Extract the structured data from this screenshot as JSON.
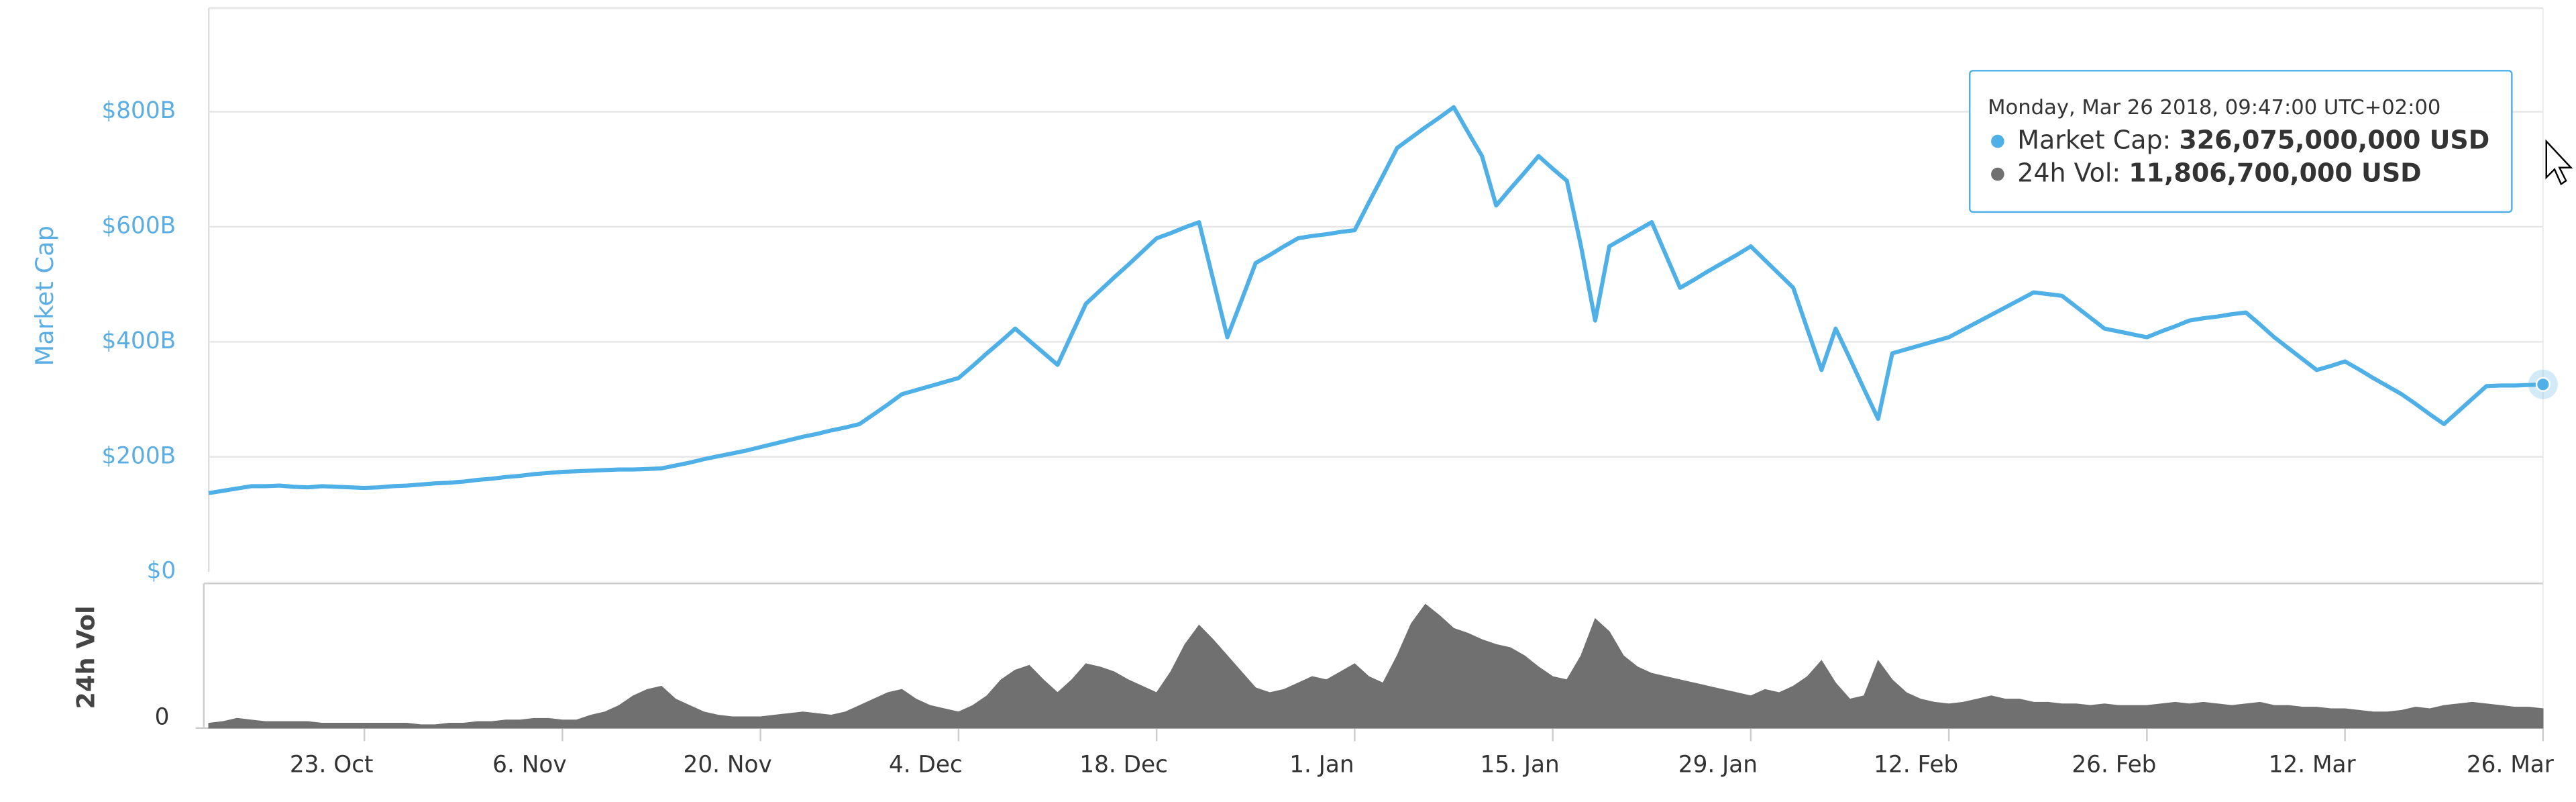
{
  "chart_data": {
    "type": "line",
    "categories": [
      "12. Oct",
      "13. Oct",
      "14. Oct",
      "15. Oct",
      "16. Oct",
      "17. Oct",
      "18. Oct",
      "19. Oct",
      "20. Oct",
      "21. Oct",
      "22. Oct",
      "23. Oct",
      "24. Oct",
      "25. Oct",
      "26. Oct",
      "27. Oct",
      "28. Oct",
      "29. Oct",
      "30. Oct",
      "31. Oct",
      "1. Nov",
      "2. Nov",
      "3. Nov",
      "4. Nov",
      "5. Nov",
      "6. Nov",
      "7. Nov",
      "8. Nov",
      "9. Nov",
      "10. Nov",
      "11. Nov",
      "12. Nov",
      "13. Nov",
      "14. Nov",
      "15. Nov",
      "16. Nov",
      "17. Nov",
      "18. Nov",
      "19. Nov",
      "20. Nov",
      "21. Nov",
      "22. Nov",
      "23. Nov",
      "24. Nov",
      "25. Nov",
      "26. Nov",
      "27. Nov",
      "28. Nov",
      "29. Nov",
      "30. Nov",
      "1. Dec",
      "2. Dec",
      "3. Dec",
      "4. Dec",
      "5. Dec",
      "6. Dec",
      "7. Dec",
      "8. Dec",
      "9. Dec",
      "10. Dec",
      "11. Dec",
      "12. Dec",
      "13. Dec",
      "14. Dec",
      "15. Dec",
      "16. Dec",
      "17. Dec",
      "18. Dec",
      "19. Dec",
      "20. Dec",
      "21. Dec",
      "22. Dec",
      "23. Dec",
      "24. Dec",
      "25. Dec",
      "26. Dec",
      "27. Dec",
      "28. Dec",
      "29. Dec",
      "30. Dec",
      "31. Dec",
      "1. Jan",
      "2. Jan",
      "3. Jan",
      "4. Jan",
      "5. Jan",
      "6. Jan",
      "7. Jan",
      "8. Jan",
      "9. Jan",
      "10. Jan",
      "11. Jan",
      "12. Jan",
      "13. Jan",
      "14. Jan",
      "15. Jan",
      "16. Jan",
      "17. Jan",
      "18. Jan",
      "19. Jan",
      "20. Jan",
      "21. Jan",
      "22. Jan",
      "23. Jan",
      "24. Jan",
      "25. Jan",
      "26. Jan",
      "27. Jan",
      "28. Jan",
      "29. Jan",
      "30. Jan",
      "31. Jan",
      "1. Feb",
      "2. Feb",
      "3. Feb",
      "4. Feb",
      "5. Feb",
      "6. Feb",
      "7. Feb",
      "8. Feb",
      "9. Feb",
      "10. Feb",
      "11. Feb",
      "12. Feb",
      "13. Feb",
      "14. Feb",
      "15. Feb",
      "16. Feb",
      "17. Feb",
      "18. Feb",
      "19. Feb",
      "20. Feb",
      "21. Feb",
      "22. Feb",
      "23. Feb",
      "24. Feb",
      "25. Feb",
      "26. Feb",
      "27. Feb",
      "28. Feb",
      "1. Mar",
      "2. Mar",
      "3. Mar",
      "4. Mar",
      "5. Mar",
      "6. Mar",
      "7. Mar",
      "8. Mar",
      "9. Mar",
      "10. Mar",
      "11. Mar",
      "12. Mar",
      "13. Mar",
      "14. Mar",
      "15. Mar",
      "16. Mar",
      "17. Mar",
      "18. Mar",
      "19. Mar",
      "20. Mar",
      "21. Mar",
      "22. Mar",
      "23. Mar",
      "24. Mar",
      "25. Mar",
      "26. Mar"
    ],
    "xticks": [
      "23. Oct",
      "6. Nov",
      "20. Nov",
      "4. Dec",
      "18. Dec",
      "1. Jan",
      "15. Jan",
      "29. Jan",
      "12. Feb",
      "26. Feb",
      "12. Mar",
      "26. Mar"
    ],
    "series": [
      {
        "name": "Market Cap",
        "color": "#4eb0e6",
        "values": [
          137,
          141,
          145,
          149,
          149,
          150,
          148,
          147,
          149,
          148,
          147,
          146,
          147,
          149,
          150,
          152,
          154,
          155,
          157,
          160,
          162,
          165,
          167,
          170,
          172,
          174,
          175,
          176,
          177,
          178,
          178,
          179,
          180,
          185,
          190,
          196,
          201,
          206,
          211,
          217,
          223,
          229,
          235,
          240,
          246,
          251,
          257,
          274,
          291,
          309,
          316,
          323,
          330,
          337,
          358,
          380,
          401,
          423,
          402,
          381,
          360,
          413,
          466,
          489,
          512,
          534,
          557,
          580,
          589,
          599,
          608,
          508,
          408,
          472,
          537,
          551,
          566,
          580,
          584,
          587,
          591,
          594,
          642,
          689,
          737,
          755,
          773,
          790,
          808,
          765,
          723,
          637,
          666,
          694,
          723,
          701,
          680,
          566,
          437,
          566,
          580,
          594,
          608,
          551,
          494,
          508,
          523,
          537,
          551,
          566,
          542,
          518,
          494,
          422,
          351,
          423,
          371,
          318,
          266,
          380,
          387,
          394,
          401,
          408,
          421,
          434,
          447,
          460,
          473,
          486,
          483,
          480,
          461,
          442,
          423,
          418,
          413,
          408,
          418,
          427,
          437,
          441,
          444,
          448,
          451,
          430,
          408,
          389,
          370,
          351,
          358,
          366,
          352,
          337,
          323,
          309,
          292,
          274,
          257,
          279,
          301,
          323,
          324,
          324,
          325,
          326
        ]
      },
      {
        "name": "24h Vol",
        "color": "#707070",
        "axis": "y2",
        "values": [
          3,
          4,
          6,
          5,
          4,
          4,
          4,
          4,
          3,
          3,
          3,
          3,
          3,
          3,
          3,
          2,
          2,
          3,
          3,
          4,
          4,
          5,
          5,
          6,
          6,
          5,
          5,
          8,
          10,
          14,
          20,
          24,
          26,
          18,
          14,
          10,
          8,
          7,
          7,
          7,
          8,
          9,
          10,
          9,
          8,
          10,
          14,
          18,
          22,
          24,
          18,
          14,
          12,
          10,
          14,
          20,
          30,
          36,
          39,
          30,
          22,
          30,
          40,
          38,
          35,
          30,
          26,
          22,
          35,
          52,
          64,
          55,
          45,
          35,
          25,
          22,
          24,
          28,
          32,
          30,
          35,
          40,
          32,
          28,
          45,
          65,
          77,
          70,
          62,
          59,
          55,
          52,
          50,
          45,
          38,
          32,
          30,
          45,
          68,
          60,
          45,
          38,
          34,
          32,
          30,
          28,
          26,
          24,
          22,
          20,
          24,
          22,
          26,
          32,
          42,
          28,
          18,
          20,
          42,
          30,
          22,
          18,
          16,
          15,
          16,
          18,
          20,
          18,
          18,
          16,
          16,
          15,
          15,
          14,
          15,
          14,
          14,
          14,
          15,
          16,
          15,
          16,
          15,
          14,
          15,
          16,
          14,
          14,
          13,
          13,
          12,
          12,
          11,
          10,
          10,
          11,
          13,
          12,
          14,
          15,
          16,
          15,
          14,
          13,
          13,
          12
        ]
      }
    ],
    "ylim": [
      0,
      980
    ],
    "yticks": [
      {
        "value": 0,
        "label": "$0"
      },
      {
        "value": 200,
        "label": "$200B"
      },
      {
        "value": 400,
        "label": "$400B"
      },
      {
        "value": 600,
        "label": "$600B"
      },
      {
        "value": 800,
        "label": "$800B"
      }
    ],
    "y2lim": [
      0,
      90
    ],
    "y2ticks": [
      0
    ],
    "grid": true,
    "tooltip": {
      "date": "Monday, Mar 26 2018, 09:47:00 UTC+02:00",
      "rows": [
        {
          "label": "Market Cap:",
          "value": "326,075,000,000 USD"
        },
        {
          "label": "24h Vol:",
          "value": "11,806,700,000 USD"
        }
      ]
    }
  }
}
